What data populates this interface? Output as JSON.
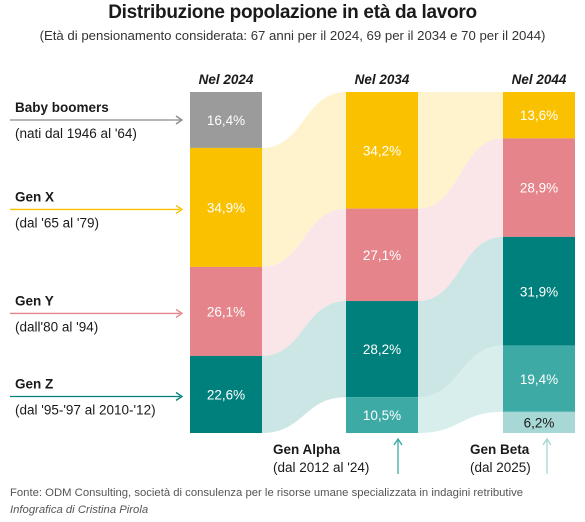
{
  "title": "Distribuzione popolazione in età da lavoro",
  "subtitle": "(Età di pensionamento considerata: 67 anni per il 2024, 69 per il 2034 e 70 per il 2044)",
  "source": "Fonte: ODM Consulting, società di consulenza per le risorse umane specializzata in indagini retributive",
  "credit": "Infografica di Cristina Pirola",
  "colors": {
    "baby_boomers": "#9b9b9b",
    "gen_x": "#f9c100",
    "gen_y": "#e5848a",
    "gen_z": "#00807c",
    "gen_alpha": "#3daaa6",
    "gen_beta": "#a7d8d5"
  },
  "chart_data": {
    "type": "bar",
    "stacked": true,
    "categories": [
      "Nel 2024",
      "Nel 2034",
      "Nel 2044"
    ],
    "unit": "%",
    "series": [
      {
        "key": "baby_boomers",
        "name": "Baby boomers",
        "range": "(nati dal 1946 al '64)",
        "values": [
          16.4,
          null,
          null
        ],
        "labels": [
          "16,4%",
          "",
          ""
        ]
      },
      {
        "key": "gen_x",
        "name": "Gen X",
        "range": "(dal '65 al '79)",
        "values": [
          34.9,
          34.2,
          13.6
        ],
        "labels": [
          "34,9%",
          "34,2%",
          "13,6%"
        ]
      },
      {
        "key": "gen_y",
        "name": "Gen Y",
        "range": "(dall'80 al '94)",
        "values": [
          26.1,
          27.1,
          28.9
        ],
        "labels": [
          "26,1%",
          "27,1%",
          "28,9%"
        ]
      },
      {
        "key": "gen_z",
        "name": "Gen Z",
        "range": "(dal '95-'97 al 2010-'12)",
        "values": [
          22.6,
          28.2,
          31.9
        ],
        "labels": [
          "22,6%",
          "28,2%",
          "31,9%"
        ]
      },
      {
        "key": "gen_alpha",
        "name": "Gen Alpha",
        "range": "(dal 2012 al '24)",
        "values": [
          null,
          10.5,
          19.4
        ],
        "labels": [
          "",
          "10,5%",
          "19,4%"
        ]
      },
      {
        "key": "gen_beta",
        "name": "Gen Beta",
        "range": "(dal 2025)",
        "values": [
          null,
          null,
          6.2
        ],
        "labels": [
          "",
          "",
          "6,2%"
        ]
      }
    ]
  }
}
